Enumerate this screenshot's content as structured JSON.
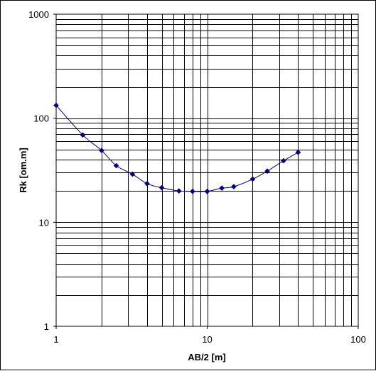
{
  "chart_data": {
    "type": "line",
    "title": "",
    "xlabel": "AB/2 [m]",
    "ylabel": "Rk [om.m]",
    "xscale": "log",
    "yscale": "log",
    "xlim": [
      1,
      100
    ],
    "ylim": [
      1,
      1000
    ],
    "grid": true,
    "legend": "none",
    "x_tick_labels": [
      "1",
      "10",
      "100"
    ],
    "y_tick_labels": [
      "1",
      "10",
      "100",
      "1000"
    ],
    "series": [
      {
        "color": "#000080",
        "marker": "diamond",
        "x": [
          1,
          1.5,
          2,
          2.5,
          3.2,
          4,
          5,
          6.5,
          8,
          10,
          12.5,
          15,
          20,
          25,
          32,
          40
        ],
        "y": [
          133,
          69,
          49,
          35,
          29,
          23.5,
          21.5,
          20,
          19.8,
          19.8,
          21.3,
          22,
          26,
          31,
          39,
          47
        ]
      }
    ]
  }
}
